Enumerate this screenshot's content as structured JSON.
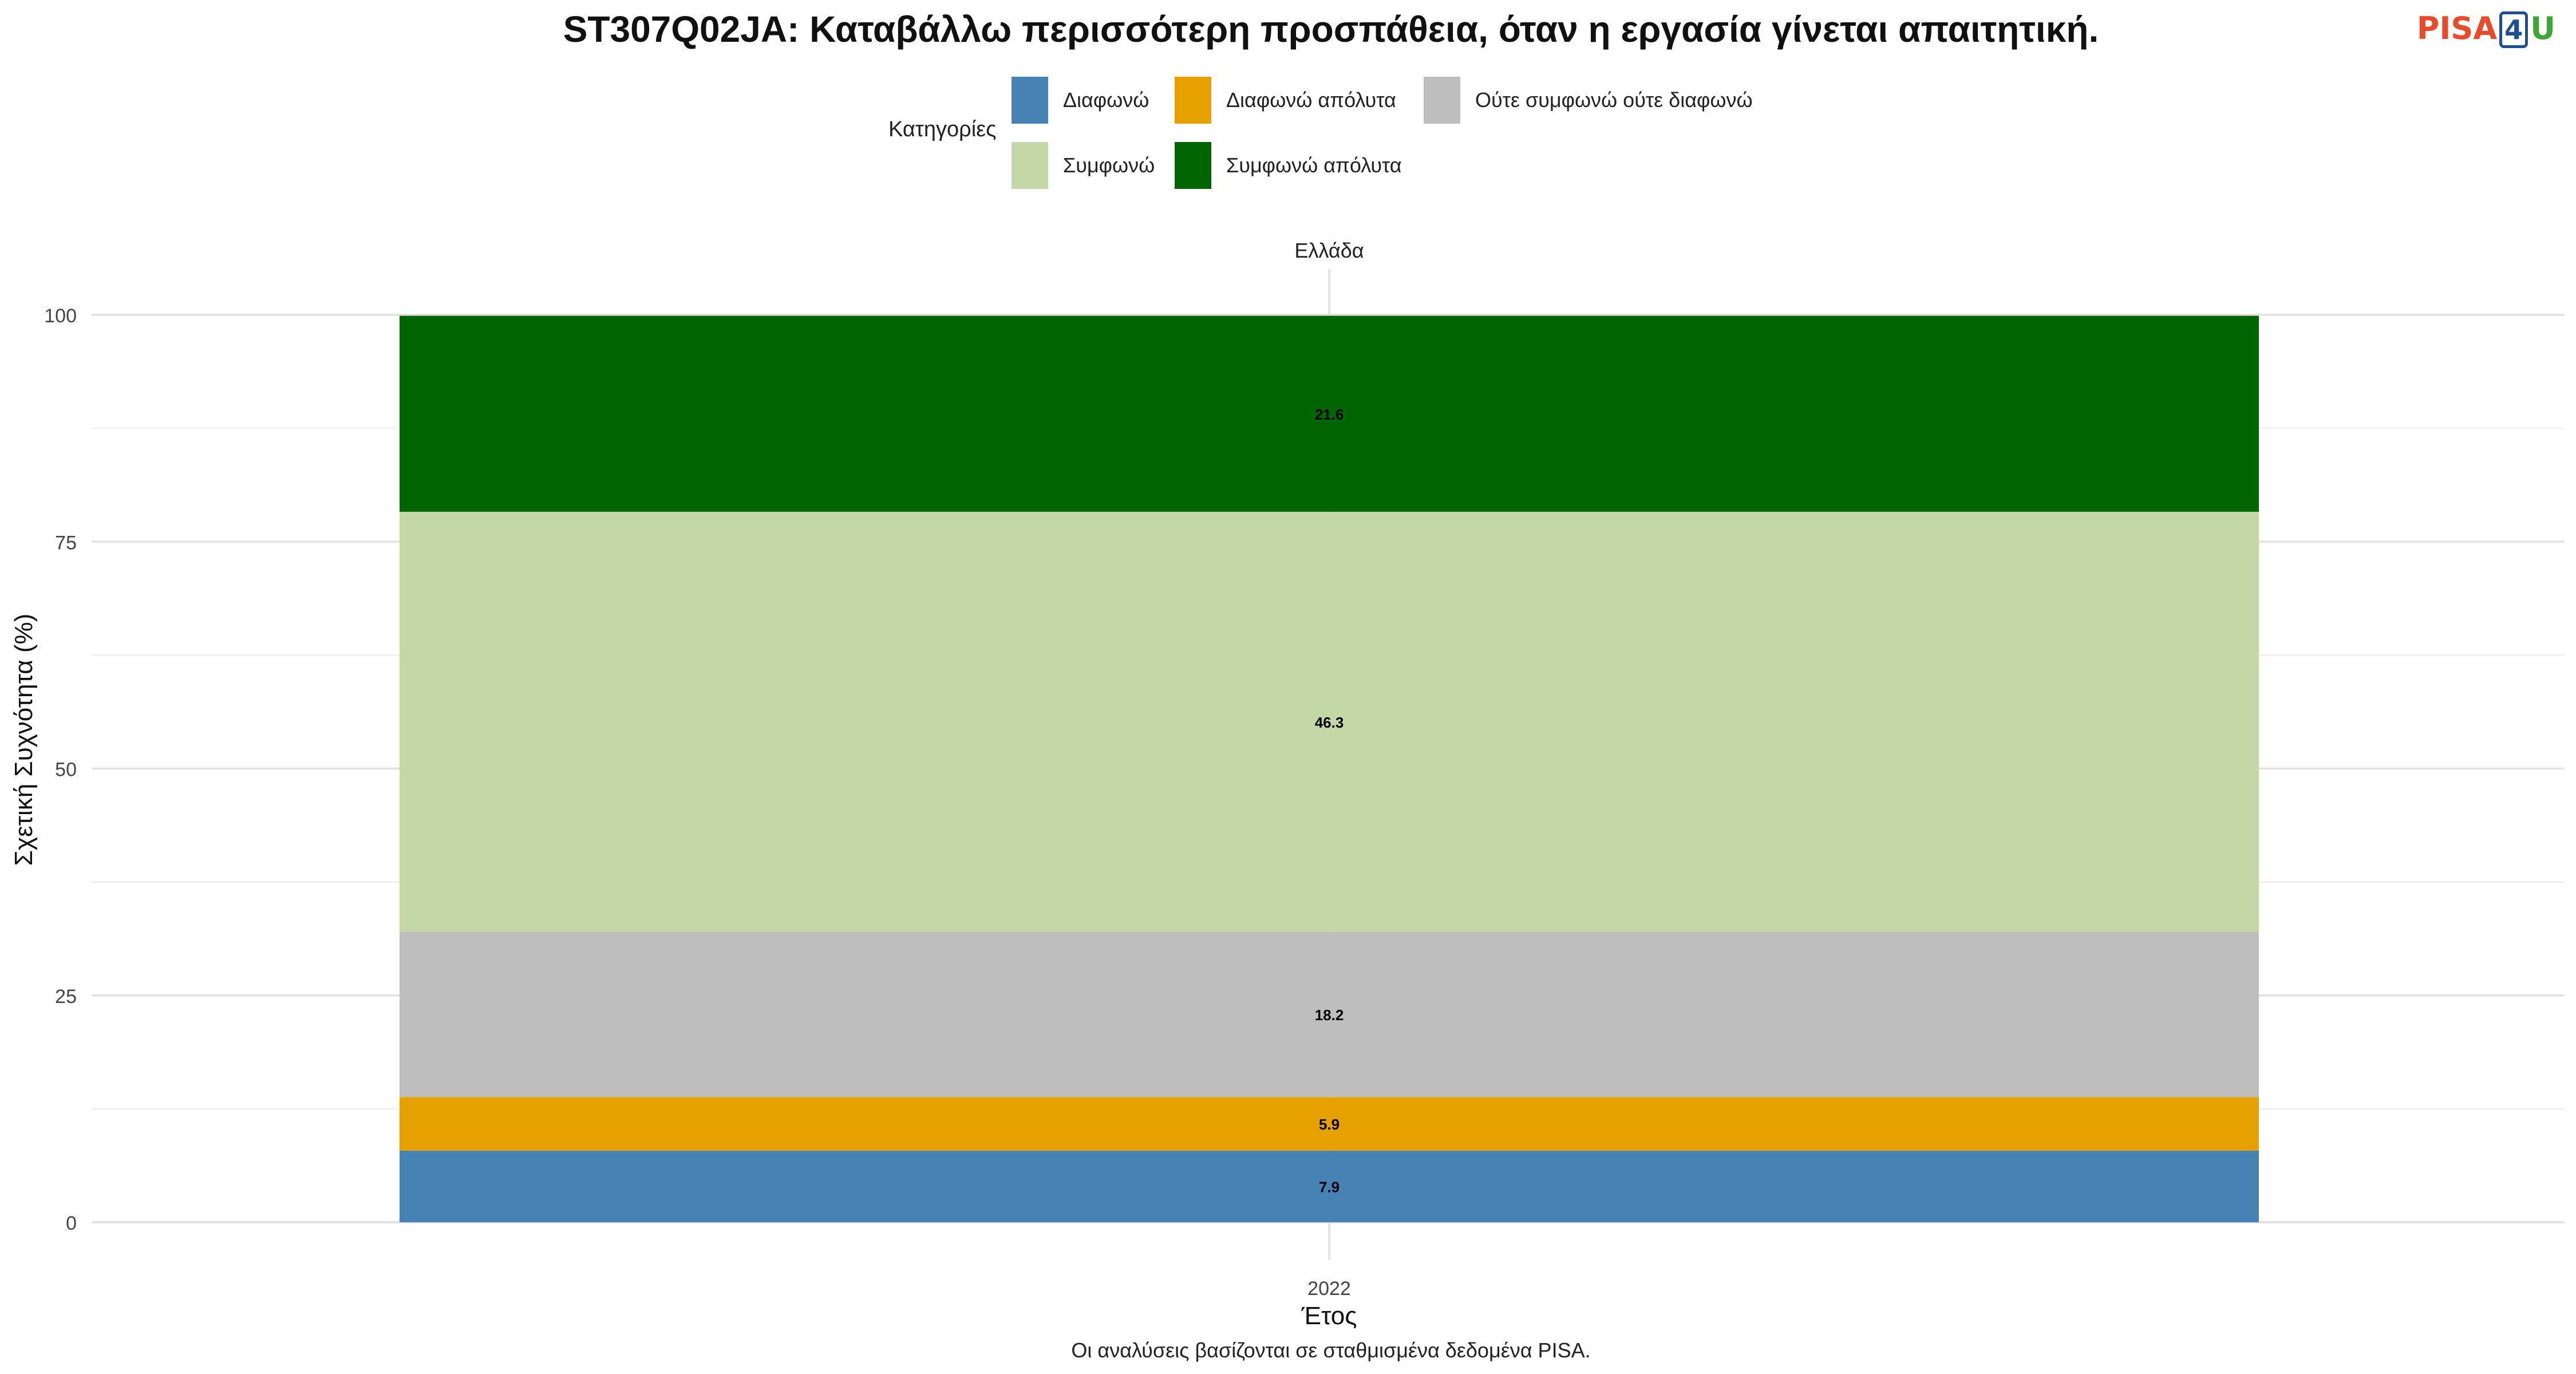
{
  "header": {
    "title": "ST307Q02JA: Καταβάλλω περισσότερη προσπάθεια, όταν η εργασία γίνεται απαιτητική.",
    "logo": {
      "part1": "PISA",
      "part2": "4",
      "part3": "U"
    }
  },
  "legend": {
    "title": "Κατηγορίες",
    "items": [
      {
        "label": "Διαφωνώ",
        "color": "#4682b4"
      },
      {
        "label": "Διαφωνώ απόλυτα",
        "color": "#e6a000"
      },
      {
        "label": "Ούτε συμφωνώ ούτε διαφωνώ",
        "color": "#bebebe"
      },
      {
        "label": "Συμφωνώ",
        "color": "#c3d7a7"
      },
      {
        "label": "Συμφωνώ απόλυτα",
        "color": "#006400"
      }
    ]
  },
  "footer": {
    "caption": "Οι αναλύσεις βασίζονται σε σταθμισμένα δεδομένα PISA."
  },
  "chart_data": {
    "type": "bar",
    "stacked": true,
    "facet": "Ελλάδα",
    "categories": [
      "2022"
    ],
    "xlabel": "Έτος",
    "ylabel": "Σχετική Συχνότητα (%)",
    "ylim": [
      0,
      100
    ],
    "yticks": [
      0,
      25,
      50,
      75,
      100
    ],
    "grid": true,
    "legend_position": "top",
    "series": [
      {
        "name": "Διαφωνώ",
        "values": [
          7.9
        ],
        "color": "#4682b4"
      },
      {
        "name": "Διαφωνώ απόλυτα",
        "values": [
          5.9
        ],
        "color": "#e6a000"
      },
      {
        "name": "Ούτε συμφωνώ ούτε διαφωνώ",
        "values": [
          18.2
        ],
        "color": "#bebebe"
      },
      {
        "name": "Συμφωνώ",
        "values": [
          46.3
        ],
        "color": "#c3d7a7"
      },
      {
        "name": "Συμφωνώ απόλυτα",
        "values": [
          21.6
        ],
        "color": "#006400"
      }
    ]
  }
}
